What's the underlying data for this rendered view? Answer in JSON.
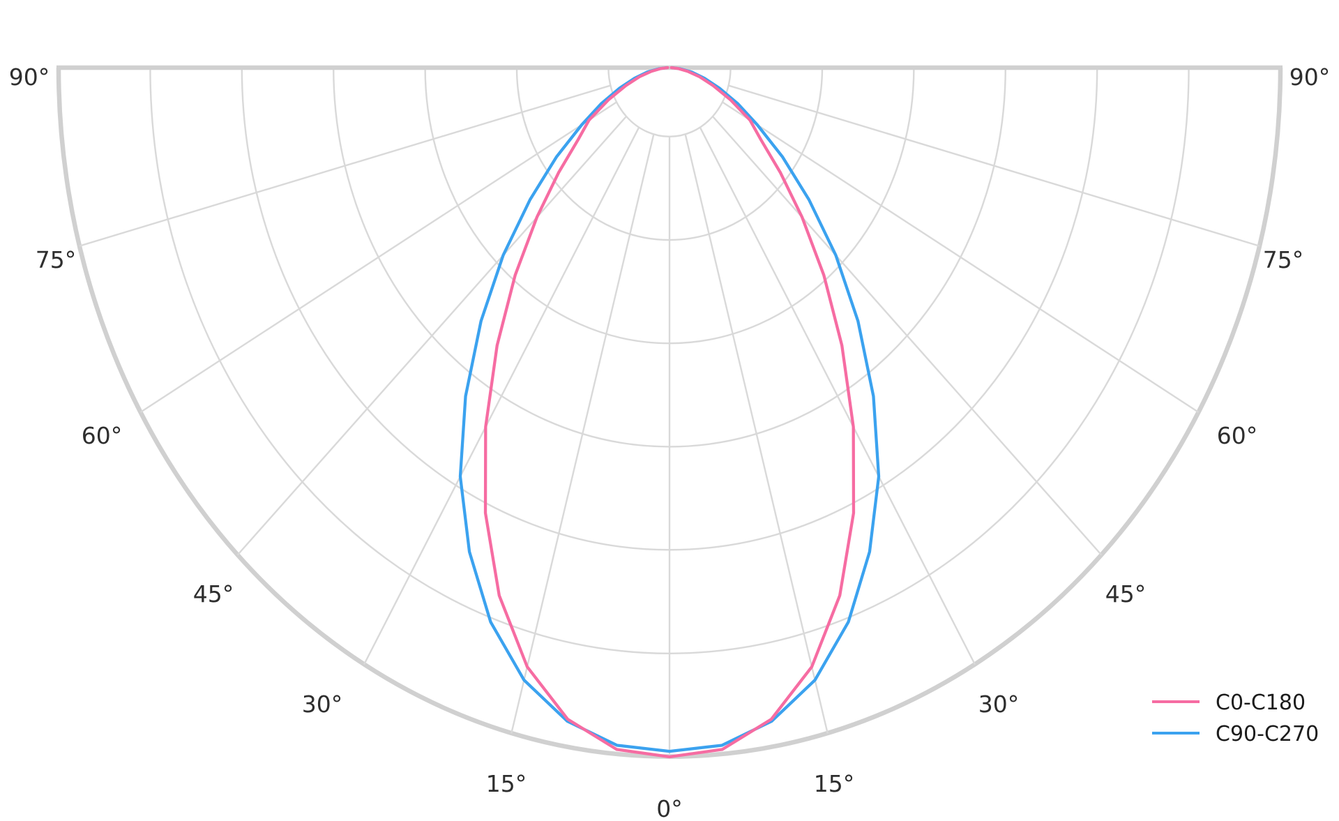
{
  "chart_data": {
    "type": "polar",
    "description": "Photometric luminous intensity distribution (half-polar diagram), 0° at nadir (bottom), 90° at horizon (top), curves mirrored about the 0° axis",
    "theta_range_deg": [
      -90,
      90
    ],
    "spoke_step_deg": 15,
    "ring_fractions": [
      0.1,
      0.25,
      0.4,
      0.55,
      0.7,
      0.85,
      1.0
    ],
    "grid": true,
    "angles_deg": [
      0,
      5,
      10,
      15,
      20,
      25,
      30,
      35,
      40,
      45,
      50,
      55,
      60,
      65,
      70,
      75,
      80,
      85,
      90
    ],
    "series": [
      {
        "name": "C0-C180",
        "color": "#F66CA2",
        "relative_intensity": [
          1.0,
          0.993,
          0.96,
          0.9,
          0.815,
          0.713,
          0.602,
          0.492,
          0.393,
          0.307,
          0.237,
          0.183,
          0.152,
          0.11,
          0.076,
          0.051,
          0.03,
          0.014,
          0.003
        ]
      },
      {
        "name": "C90-C270",
        "color": "#3BA2EF",
        "relative_intensity": [
          0.992,
          0.987,
          0.963,
          0.92,
          0.856,
          0.775,
          0.685,
          0.582,
          0.48,
          0.385,
          0.298,
          0.226,
          0.166,
          0.123,
          0.087,
          0.059,
          0.037,
          0.017,
          0.004
        ]
      }
    ],
    "theta_tick_labels": [
      "90°",
      "90°",
      "75°",
      "75°",
      "60°",
      "60°",
      "45°",
      "45°",
      "30°",
      "30°",
      "15°",
      "15°",
      "0°"
    ],
    "legend": {
      "position": "bottom-right",
      "entries": [
        "C0-C180",
        "C90-C270"
      ]
    }
  },
  "colors": {
    "background": "#FFFFFF",
    "grid_line": "#D9D9D9",
    "outer_rim": "#D0D0D0",
    "tick_label": "#2E2E2E",
    "legend_text": "#1C1C1C"
  }
}
